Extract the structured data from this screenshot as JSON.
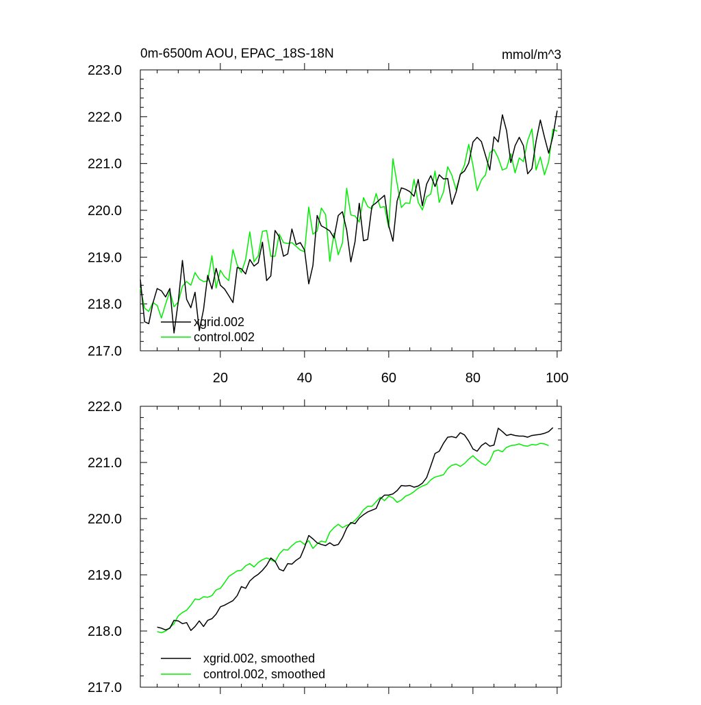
{
  "colors": {
    "series_a": "#000000",
    "series_b": "#00ee00",
    "frame": "#000000",
    "background": "#ffffff"
  },
  "chart_data": [
    {
      "type": "line",
      "title": "0m-6500m AOU, EPAC_18S-18N",
      "units": "mmol/m^3",
      "xlim": [
        1,
        101
      ],
      "ylim": [
        217.0,
        223.0
      ],
      "x_ticks": [
        20,
        40,
        60,
        80,
        100
      ],
      "x_tick_labels": [
        "20",
        "40",
        "60",
        "80",
        "100"
      ],
      "y_ticks": [
        217.0,
        218.0,
        219.0,
        220.0,
        221.0,
        222.0,
        223.0
      ],
      "y_tick_labels": [
        "217.0",
        "218.0",
        "219.0",
        "220.0",
        "221.0",
        "222.0",
        "223.0"
      ],
      "legend_position": "bottom-left",
      "series": [
        {
          "name": "xgrid.002",
          "color": "#000000",
          "x": [
            1,
            2,
            3,
            4,
            5,
            6,
            7,
            8,
            9,
            10,
            11,
            12,
            13,
            14,
            15,
            16,
            17,
            18,
            19,
            20,
            21,
            22,
            23,
            24,
            25,
            26,
            27,
            28,
            29,
            30,
            31,
            32,
            33,
            34,
            35,
            36,
            37,
            38,
            39,
            40,
            41,
            42,
            43,
            44,
            45,
            46,
            47,
            48,
            49,
            50,
            51,
            52,
            53,
            54,
            55,
            56,
            57,
            58,
            59,
            60,
            61,
            62,
            63,
            64,
            65,
            66,
            67,
            68,
            69,
            70,
            71,
            72,
            73,
            74,
            75,
            76,
            77,
            78,
            79,
            80,
            81,
            82,
            83,
            84,
            85,
            86,
            87,
            88,
            89,
            90,
            91,
            92,
            93,
            94,
            95,
            96,
            97,
            98,
            99,
            100
          ],
          "values": [
            218.52,
            217.62,
            217.58,
            218.02,
            218.33,
            218.28,
            218.15,
            218.33,
            217.38,
            218.05,
            218.93,
            218.1,
            217.92,
            218.25,
            217.43,
            217.88,
            218.61,
            218.32,
            218.76,
            218.4,
            218.32,
            218.18,
            218.03,
            218.78,
            218.75,
            218.64,
            218.95,
            218.81,
            218.88,
            219.32,
            218.5,
            218.6,
            219.57,
            219.43,
            219.02,
            219.07,
            219.6,
            219.27,
            219.31,
            219.15,
            218.43,
            218.82,
            219.89,
            219.67,
            219.62,
            219.56,
            219.41,
            219.89,
            219.97,
            219.58,
            218.9,
            219.33,
            220.15,
            219.35,
            219.38,
            220.09,
            220.16,
            220.24,
            220.32,
            219.68,
            219.34,
            220.2,
            220.48,
            220.45,
            220.4,
            220.3,
            220.66,
            220.1,
            220.56,
            220.74,
            220.51,
            220.76,
            220.67,
            220.68,
            220.13,
            220.39,
            220.77,
            220.84,
            221.01,
            221.46,
            221.56,
            221.47,
            221.17,
            220.86,
            221.57,
            221.46,
            222.04,
            221.7,
            221.02,
            221.38,
            221.56,
            221.38,
            220.78,
            220.89,
            221.48,
            221.93,
            221.56,
            221.22,
            221.58,
            222.13
          ]
        },
        {
          "name": "control.002",
          "color": "#00ee00",
          "x": [
            1,
            2,
            3,
            4,
            5,
            6,
            7,
            8,
            9,
            10,
            11,
            12,
            13,
            14,
            15,
            16,
            17,
            18,
            19,
            20,
            21,
            22,
            23,
            24,
            25,
            26,
            27,
            28,
            29,
            30,
            31,
            32,
            33,
            34,
            35,
            36,
            37,
            38,
            39,
            40,
            41,
            42,
            43,
            44,
            45,
            46,
            47,
            48,
            49,
            50,
            51,
            52,
            53,
            54,
            55,
            56,
            57,
            58,
            59,
            60,
            61,
            62,
            63,
            64,
            65,
            66,
            67,
            68,
            69,
            70,
            71,
            72,
            73,
            74,
            75,
            76,
            77,
            78,
            79,
            80,
            81,
            82,
            83,
            84,
            85,
            86,
            87,
            88,
            89,
            90,
            91,
            92,
            93,
            94,
            95,
            96,
            97,
            98,
            99,
            100
          ],
          "values": [
            218.35,
            217.91,
            217.84,
            218.03,
            217.97,
            217.7,
            218.0,
            218.27,
            217.94,
            218.04,
            218.38,
            218.48,
            218.4,
            218.67,
            218.53,
            218.48,
            218.49,
            219.03,
            218.34,
            218.72,
            218.58,
            218.5,
            219.16,
            218.83,
            218.67,
            218.95,
            219.54,
            218.9,
            219.03,
            219.55,
            219.57,
            219.02,
            219.02,
            219.49,
            219.31,
            219.29,
            219.31,
            219.23,
            219.15,
            219.12,
            220.07,
            219.49,
            219.56,
            220.05,
            219.91,
            218.91,
            219.51,
            219.05,
            219.3,
            220.47,
            219.9,
            219.88,
            219.75,
            220.27,
            220.08,
            220.03,
            220.36,
            220.06,
            220.08,
            219.63,
            221.1,
            220.57,
            220.06,
            220.16,
            220.15,
            220.66,
            220.17,
            220.01,
            220.29,
            220.35,
            220.84,
            220.17,
            220.39,
            220.93,
            220.75,
            220.44,
            220.76,
            220.97,
            221.41,
            220.96,
            220.42,
            220.65,
            220.76,
            221.23,
            221.3,
            221.12,
            220.86,
            220.9,
            221.21,
            220.8,
            221.12,
            221.04,
            221.49,
            221.74,
            220.86,
            221.14,
            220.76,
            221.04,
            221.73,
            221.69
          ]
        }
      ]
    },
    {
      "type": "line",
      "title": "",
      "units": "",
      "xlim": [
        1,
        101
      ],
      "ylim": [
        217.0,
        222.0
      ],
      "x_ticks": [
        20,
        40,
        60,
        80,
        100
      ],
      "x_tick_labels": [
        "",
        "",
        "",
        "",
        ""
      ],
      "y_ticks": [
        217.0,
        218.0,
        219.0,
        220.0,
        221.0,
        222.0
      ],
      "y_tick_labels": [
        "217.0",
        "218.0",
        "219.0",
        "220.0",
        "221.0",
        "222.0"
      ],
      "legend_position": "bottom-left",
      "series": [
        {
          "name": "xgrid.002, smoothed",
          "color": "#000000",
          "x": [
            5,
            6,
            7,
            8,
            9,
            10,
            11,
            12,
            13,
            14,
            15,
            16,
            17,
            18,
            19,
            20,
            21,
            22,
            23,
            24,
            25,
            26,
            27,
            28,
            29,
            30,
            31,
            32,
            33,
            34,
            35,
            36,
            37,
            38,
            39,
            40,
            41,
            42,
            43,
            44,
            45,
            46,
            47,
            48,
            49,
            50,
            51,
            52,
            53,
            54,
            55,
            56,
            57,
            58,
            59,
            60,
            61,
            62,
            63,
            64,
            65,
            66,
            67,
            68,
            69,
            70,
            71,
            72,
            73,
            74,
            75,
            76,
            77,
            78,
            79,
            80,
            81,
            82,
            83,
            84,
            85,
            86,
            87,
            88,
            89,
            90,
            91,
            92,
            93,
            94,
            95,
            96,
            97,
            98,
            99
          ],
          "values": [
            218.07,
            218.05,
            218.02,
            218.05,
            218.19,
            218.18,
            218.13,
            218.15,
            218.01,
            218.08,
            218.18,
            218.08,
            218.19,
            218.22,
            218.3,
            218.43,
            218.46,
            218.5,
            218.54,
            218.63,
            218.79,
            218.76,
            218.89,
            218.96,
            219.01,
            219.08,
            219.17,
            219.3,
            219.24,
            219.1,
            219.07,
            219.2,
            219.19,
            219.26,
            219.31,
            219.49,
            219.7,
            219.64,
            219.57,
            219.54,
            219.52,
            219.57,
            219.52,
            219.54,
            219.66,
            219.83,
            219.93,
            219.91,
            220.01,
            220.07,
            220.12,
            220.15,
            220.18,
            220.35,
            220.42,
            220.42,
            220.44,
            220.5,
            220.59,
            220.58,
            220.59,
            220.56,
            220.58,
            220.63,
            220.73,
            220.94,
            221.16,
            221.2,
            221.34,
            221.45,
            221.46,
            221.44,
            221.53,
            221.49,
            221.38,
            221.24,
            221.2,
            221.3,
            221.35,
            221.29,
            221.31,
            221.61,
            221.55,
            221.48,
            221.5,
            221.48,
            221.47,
            221.47,
            221.45,
            221.48,
            221.49,
            221.5,
            221.52,
            221.55,
            221.62
          ]
        },
        {
          "name": "control.002, smoothed",
          "color": "#00ee00",
          "x": [
            5,
            6,
            7,
            8,
            9,
            10,
            11,
            12,
            13,
            14,
            15,
            16,
            17,
            18,
            19,
            20,
            21,
            22,
            23,
            24,
            25,
            26,
            27,
            28,
            29,
            30,
            31,
            32,
            33,
            34,
            35,
            36,
            37,
            38,
            39,
            40,
            41,
            42,
            43,
            44,
            45,
            46,
            47,
            48,
            49,
            50,
            51,
            52,
            53,
            54,
            55,
            56,
            57,
            58,
            59,
            60,
            61,
            62,
            63,
            64,
            65,
            66,
            67,
            68,
            69,
            70,
            71,
            72,
            73,
            74,
            75,
            76,
            77,
            78,
            79,
            80,
            81,
            82,
            83,
            84,
            85,
            86,
            87,
            88,
            89,
            90,
            91,
            92,
            93,
            94,
            95,
            96,
            97,
            98
          ],
          "values": [
            217.99,
            217.97,
            218.0,
            218.06,
            218.13,
            218.27,
            218.33,
            218.37,
            218.46,
            218.57,
            218.56,
            218.61,
            218.6,
            218.63,
            218.73,
            218.76,
            218.86,
            218.97,
            219.02,
            219.07,
            219.08,
            219.16,
            219.2,
            219.14,
            219.22,
            219.27,
            219.3,
            219.27,
            219.23,
            219.37,
            219.45,
            219.44,
            219.52,
            219.58,
            219.6,
            219.54,
            219.61,
            219.47,
            219.55,
            219.6,
            219.58,
            219.76,
            219.84,
            219.9,
            219.84,
            219.88,
            219.91,
            219.97,
            220.05,
            220.16,
            220.22,
            220.22,
            220.3,
            220.38,
            220.32,
            220.4,
            220.37,
            220.29,
            220.33,
            220.4,
            220.43,
            220.48,
            220.54,
            220.58,
            220.61,
            220.69,
            220.74,
            220.76,
            220.78,
            220.89,
            220.95,
            220.97,
            220.93,
            220.98,
            221.06,
            221.12,
            221.05,
            220.99,
            220.95,
            221.03,
            221.2,
            221.22,
            221.19,
            221.27,
            221.3,
            221.31,
            221.33,
            221.3,
            221.29,
            221.32,
            221.31,
            221.34,
            221.33,
            221.3
          ]
        }
      ]
    }
  ]
}
